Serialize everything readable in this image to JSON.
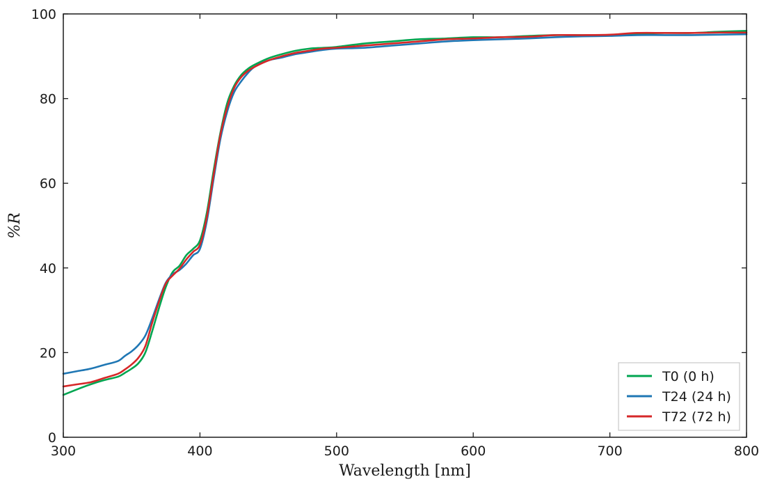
{
  "chart_data": {
    "type": "line",
    "title": "",
    "xlabel": "Wavelength [nm]",
    "ylabel": "%R",
    "xlim": [
      300,
      800
    ],
    "ylim": [
      0,
      100
    ],
    "xticks": [
      300,
      400,
      500,
      600,
      700,
      800
    ],
    "yticks": [
      0,
      20,
      40,
      60,
      80,
      100
    ],
    "grid": false,
    "legend_position": "bottom-right",
    "series": [
      {
        "name": "T0 (0 h)",
        "color": "#00a550",
        "x": [
          300,
          310,
          320,
          330,
          340,
          345,
          350,
          355,
          360,
          365,
          370,
          375,
          380,
          385,
          390,
          395,
          400,
          405,
          410,
          415,
          420,
          425,
          430,
          435,
          440,
          450,
          460,
          470,
          480,
          490,
          500,
          520,
          540,
          560,
          580,
          600,
          620,
          640,
          660,
          680,
          700,
          720,
          740,
          760,
          780,
          800
        ],
        "y": [
          10,
          11.3,
          12.5,
          13.5,
          14.3,
          15.2,
          16.2,
          17.5,
          20,
          25,
          30.5,
          35.5,
          39,
          40.5,
          43,
          44.5,
          46.5,
          53,
          63,
          72,
          79,
          83,
          85.5,
          87,
          88,
          89.5,
          90.5,
          91.3,
          91.8,
          92,
          92.2,
          93,
          93.5,
          94,
          94.2,
          94.5,
          94.5,
          94.8,
          95,
          95,
          95,
          95.3,
          95.5,
          95.5,
          95.8,
          96
        ]
      },
      {
        "name": "T24 (24 h)",
        "color": "#1f77b4",
        "x": [
          300,
          310,
          320,
          330,
          340,
          345,
          350,
          355,
          360,
          365,
          370,
          375,
          380,
          385,
          390,
          395,
          400,
          405,
          410,
          415,
          420,
          425,
          430,
          435,
          440,
          450,
          460,
          470,
          480,
          490,
          500,
          520,
          540,
          560,
          580,
          600,
          620,
          640,
          660,
          680,
          700,
          720,
          740,
          760,
          780,
          800
        ],
        "y": [
          15,
          15.6,
          16.2,
          17.1,
          18,
          19.2,
          20.3,
          21.8,
          24,
          28,
          32.5,
          36.5,
          38.5,
          39.5,
          41,
          43,
          44.5,
          51,
          61,
          70.5,
          77,
          81.5,
          84,
          86,
          87.5,
          89,
          89.7,
          90.5,
          91,
          91.5,
          91.8,
          92,
          92.5,
          93,
          93.5,
          93.8,
          94,
          94.2,
          94.5,
          94.7,
          94.8,
          95,
          95,
          95,
          95.1,
          95.2
        ]
      },
      {
        "name": "T72 (72 h)",
        "color": "#d62728",
        "x": [
          300,
          310,
          320,
          330,
          340,
          345,
          350,
          355,
          360,
          365,
          370,
          375,
          380,
          385,
          390,
          395,
          400,
          405,
          410,
          415,
          420,
          425,
          430,
          435,
          440,
          450,
          460,
          470,
          480,
          490,
          500,
          520,
          540,
          560,
          580,
          600,
          620,
          640,
          660,
          680,
          700,
          720,
          740,
          760,
          780,
          800
        ],
        "y": [
          12,
          12.5,
          13,
          14,
          15,
          16,
          17.2,
          18.8,
          21.5,
          27,
          32,
          36.3,
          38.2,
          39.8,
          42,
          43.8,
          45.5,
          52,
          62,
          71.5,
          78,
          82.5,
          85,
          86.5,
          87.5,
          89,
          90,
          90.8,
          91.3,
          91.8,
          92,
          92.5,
          93,
          93.5,
          94,
          94.2,
          94.5,
          94.6,
          95,
          95,
          95.1,
          95.5,
          95.5,
          95.5,
          95.6,
          95.6
        ]
      }
    ]
  }
}
